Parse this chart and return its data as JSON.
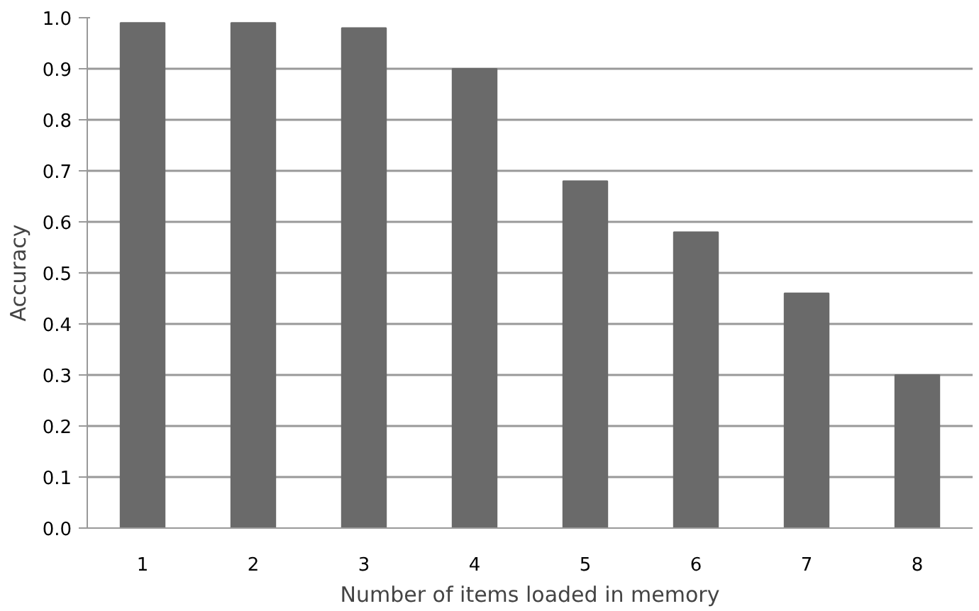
{
  "chart_data": {
    "type": "bar",
    "xlabel": "Number of items loaded in memory",
    "ylabel": "Accuracy",
    "categories": [
      "1",
      "2",
      "3",
      "4",
      "5",
      "6",
      "7",
      "8"
    ],
    "values": [
      0.99,
      0.99,
      0.98,
      0.9,
      0.68,
      0.58,
      0.46,
      0.3
    ],
    "color": "#6a6a6a",
    "ylim": [
      0,
      1
    ],
    "yticks": [
      {
        "value": 0,
        "label": "0.0"
      },
      0.1,
      0.2,
      0.3,
      0.4,
      0.5,
      0.6,
      0.7,
      0.8,
      0.9,
      {
        "value": 1,
        "label": "1.0"
      }
    ],
    "grid": "y"
  }
}
